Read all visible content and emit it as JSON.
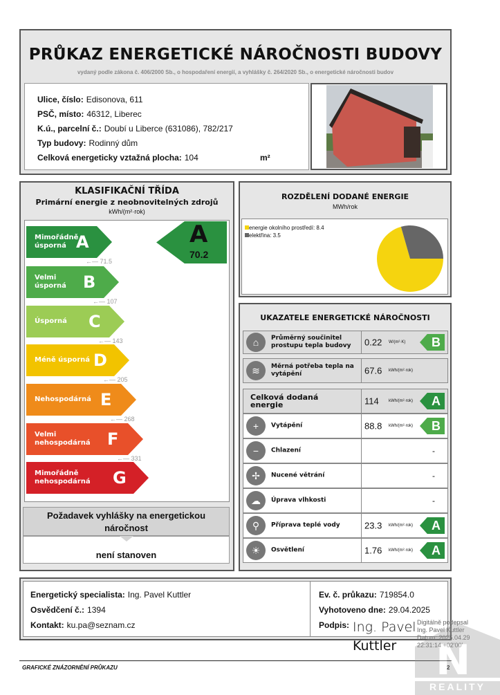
{
  "header": {
    "title": "PRŮKAZ ENERGETICKÉ NÁROČNOSTI BUDOVY",
    "subtitle": "vydaný podle zákona č. 406/2000 Sb., o hospodaření energií, a vyhlášky č. 264/2020 Sb., o energetické náročnosti budov"
  },
  "building": {
    "fields": [
      {
        "label": "Ulice, číslo:",
        "value": "Edisonova, 611"
      },
      {
        "label": "PSČ, místo:",
        "value": "46312, Liberec"
      },
      {
        "label": "K.ú., parcelní č.:",
        "value": "Doubí u Liberce (631086), 782/217"
      },
      {
        "label": "Typ budovy:",
        "value": "Rodinný dům"
      },
      {
        "label": "Celková energeticky vztažná plocha:",
        "value": "104"
      }
    ],
    "area_unit": "m²"
  },
  "classification": {
    "title": "KLASIFIKAČNÍ TŘÍDA",
    "subtitle": "Primární energie z neobnovitelných zdrojů",
    "unit": "kWh/(m²·rok)",
    "bars": [
      {
        "letter": "A",
        "label": "Mimořádně úsporná",
        "color": "#2a9140",
        "threshold": "71.5"
      },
      {
        "letter": "B",
        "label": "Velmi úsporná",
        "color": "#4eab4a",
        "threshold": "107"
      },
      {
        "letter": "C",
        "label": "Úsporná",
        "color": "#9ccc55",
        "threshold": "143"
      },
      {
        "letter": "D",
        "label": "Méně úsporná",
        "color": "#f2c300",
        "threshold": "205"
      },
      {
        "letter": "E",
        "label": "Nehospodárná",
        "color": "#ef8b1a",
        "threshold": "268"
      },
      {
        "letter": "F",
        "label": "Velmi nehospodárná",
        "color": "#e8502a",
        "threshold": "331"
      },
      {
        "letter": "G",
        "label": "Mimořádně nehospodárná",
        "color": "#d42027",
        "threshold": ""
      }
    ],
    "result": {
      "letter": "A",
      "value": "70.2",
      "color": "#2a9140"
    },
    "requirement_title": "Požadavek vyhlášky na energetickou náročnost",
    "requirement_value": "není stanoven"
  },
  "distribution": {
    "title": "ROZDĚLENÍ DODANÉ ENERGIE",
    "unit": "MWh/rok",
    "chart_data": {
      "type": "pie",
      "series": [
        {
          "name": "energie okolního prostředí",
          "value": 8.4,
          "label": "energie okolního prostředí: 8.4",
          "color": "#f5d40f"
        },
        {
          "name": "elektřina",
          "value": 3.5,
          "label": "elektřina: 3.5",
          "color": "#666666"
        }
      ],
      "legend": "top-left"
    }
  },
  "indicators": {
    "title": "UKAZATELE ENERGETICKÉ NÁROČNOSTI",
    "rows": [
      {
        "icon": "house-icon",
        "name": "Průměrný součinitel prostupu tepla budovy",
        "value": "0.22",
        "unit": "W/(m²·K)",
        "class": "B",
        "class_color": "#4eab4a",
        "grey": true
      },
      {
        "icon": "heat-thermometer-icon",
        "name": "Měrná potřeba tepla na vytápění",
        "value": "67.6",
        "unit": "kWh/(m²·rok)",
        "class": "",
        "grey": true
      },
      {
        "icon": "",
        "name": "Celková dodaná energie",
        "value": "114",
        "unit": "kWh/(m²·rok)",
        "class": "A",
        "class_color": "#2a9140",
        "grey": true
      },
      {
        "icon": "thermometer-plus-icon",
        "name": "Vytápění",
        "value": "88.8",
        "unit": "kWh/(m²·rok)",
        "class": "B",
        "class_color": "#4eab4a"
      },
      {
        "icon": "thermometer-minus-icon",
        "name": "Chlazení",
        "value": "-",
        "unit": "",
        "class": ""
      },
      {
        "icon": "fan-icon",
        "name": "Nucené větrání",
        "value": "-",
        "unit": "",
        "class": ""
      },
      {
        "icon": "humidity-icon",
        "name": "Úprava vlhkosti",
        "value": "-",
        "unit": "",
        "class": ""
      },
      {
        "icon": "faucet-icon",
        "name": "Příprava teplé vody",
        "value": "23.3",
        "unit": "kWh/(m²·rok)",
        "class": "A",
        "class_color": "#2a9140"
      },
      {
        "icon": "lightbulb-icon",
        "name": "Osvětlení",
        "value": "1.76",
        "unit": "kWh/(m²·rok)",
        "class": "A",
        "class_color": "#2a9140"
      }
    ]
  },
  "specialist": {
    "name_label": "Energetický specialista:",
    "name": "Ing. Pavel Kuttler",
    "cert_label": "Osvědčení č.:",
    "cert": "1394",
    "contact_label": "Kontakt:",
    "contact": "ku.pa@seznam.cz",
    "ev_label": "Ev. č. průkazu:",
    "ev": "719854.0",
    "date_label": "Vyhotoveno dne:",
    "date": "29.04.2025",
    "sign_label": "Podpis:",
    "sign_name_1": "Ing. Pavel",
    "sign_name_2": "Kuttler",
    "digital_sign": [
      "Digitálně podepsal",
      "Ing. Pavel Kuttler",
      "Datum: 2025.04.29",
      "22:31:14 +02'00'"
    ]
  },
  "footer": {
    "text": "GRAFICKÉ ZNÁZORNĚNÍ PRŮKAZU",
    "page": "2",
    "watermark": "REALITY"
  }
}
